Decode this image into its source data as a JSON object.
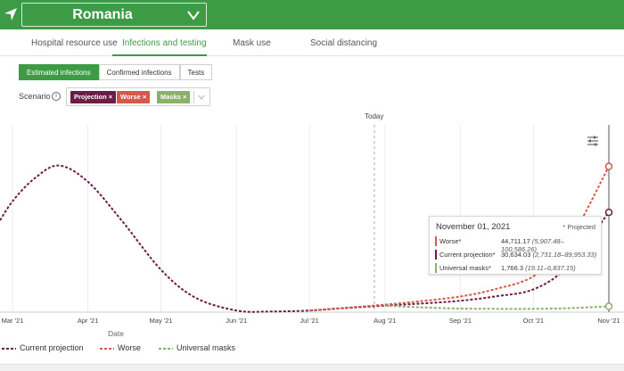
{
  "header": {
    "location": "Romania",
    "icons": [
      "navigation-arrow-icon",
      "chevron-down-icon"
    ]
  },
  "tabs": [
    {
      "label": "Hospital resource use",
      "active": false
    },
    {
      "label": "Infections and testing",
      "active": true
    },
    {
      "label": "Mask use",
      "active": false
    },
    {
      "label": "Social distancing",
      "active": false
    }
  ],
  "metric_toggle": [
    {
      "label": "Estimated infections",
      "active": true
    },
    {
      "label": "Confirmed infections",
      "active": false
    },
    {
      "label": "Tests",
      "active": false
    }
  ],
  "scenario": {
    "label": "Scenario",
    "chips": [
      {
        "label": "Projection ×",
        "color": "#6b1d45"
      },
      {
        "label": "Worse ×",
        "color": "#d15a4a"
      },
      {
        "label": "Masks ×",
        "color": "#8ab06a"
      }
    ]
  },
  "chart": {
    "today_label": "Today",
    "xlabel": "Date"
  },
  "tooltip": {
    "date": "November 01, 2021",
    "projected_note": "* Projected",
    "rows": [
      {
        "name": "Worse*",
        "value": "44,711.17",
        "range": "(5,907.48–100,586.26)",
        "color": "#d15a4a"
      },
      {
        "name": "Current projection*",
        "value": "30,634.03",
        "range": "(2,731.18–89,953.33)",
        "color": "#6b1d45"
      },
      {
        "name": "Universal masks*",
        "value": "1,766.3",
        "range": "(19.11–6,837.15)",
        "color": "#8ab06a"
      }
    ]
  },
  "legend": [
    {
      "label": "Current projection",
      "color": "#6b1d45"
    },
    {
      "label": "Worse",
      "color": "#d15a4a"
    },
    {
      "label": "Universal masks",
      "color": "#8ab06a"
    }
  ],
  "chart_data": {
    "type": "line",
    "xlabel": "Date",
    "x_ticks": [
      "Mar '21",
      "Apr '21",
      "May '21",
      "Jun '21",
      "Jul '21",
      "Aug '21",
      "Sep '21",
      "Oct '21",
      "Nov '21"
    ],
    "today": "Aug '21",
    "series": [
      {
        "name": "Current projection",
        "color": "#6b1d45",
        "x": [
          "Feb 23 '21",
          "Mar 01 '21",
          "Mar 10 '21",
          "Mar 20 '21",
          "Apr 01 '21",
          "Apr 15 '21",
          "May 01 '21",
          "May 15 '21",
          "Jun 01 '21",
          "Jun 15 '21",
          "Jul 01 '21",
          "Jul 15 '21",
          "Aug 01 '21",
          "Aug 15 '21",
          "Sep 01 '21",
          "Sep 15 '21",
          "Oct 01 '21",
          "Oct 15 '21",
          "Nov 01 '21"
        ],
        "y": [
          27000,
          34000,
          41000,
          45000,
          40000,
          28000,
          13000,
          4500,
          500,
          200,
          500,
          1200,
          2000,
          2600,
          3500,
          4800,
          7000,
          14000,
          30634.03
        ]
      },
      {
        "name": "Worse",
        "color": "#d15a4a",
        "x": [
          "Jul 01 '21",
          "Jul 15 '21",
          "Aug 01 '21",
          "Aug 15 '21",
          "Sep 01 '21",
          "Sep 15 '21",
          "Oct 01 '21",
          "Oct 15 '21",
          "Nov 01 '21"
        ],
        "y": [
          500,
          1300,
          2300,
          3300,
          4800,
          7000,
          11000,
          21000,
          44711.17
        ]
      },
      {
        "name": "Universal masks",
        "color": "#8ab06a",
        "x": [
          "Aug 01 '21",
          "Aug 15 '21",
          "Sep 01 '21",
          "Sep 15 '21",
          "Oct 01 '21",
          "Oct 15 '21",
          "Nov 01 '21"
        ],
        "y": [
          2000,
          1500,
          1100,
          1000,
          1000,
          1200,
          1766.3
        ]
      }
    ]
  }
}
